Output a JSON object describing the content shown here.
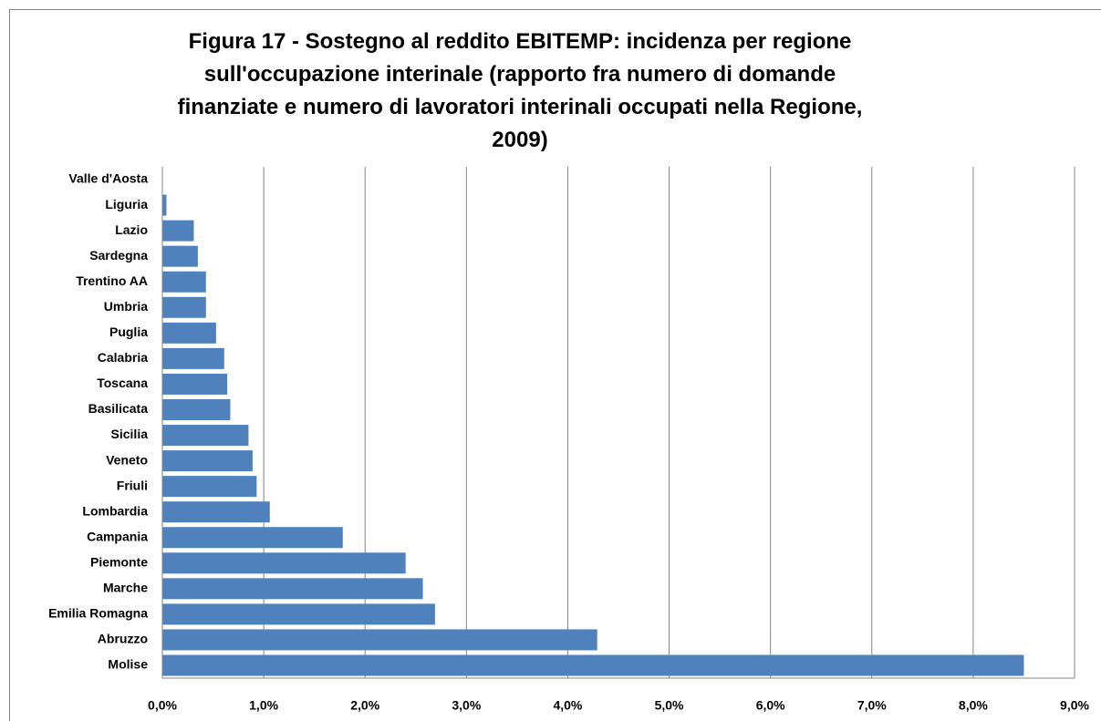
{
  "chart_data": {
    "type": "hbar",
    "title": "Figura 17 - Sostegno al reddito EBITEMP: incidenza per regione\nsull'occupazione interinale (rapporto fra numero di domande\nfinanziate e numero di lavoratori interinali occupati nella Regione,\n2009)",
    "categories": [
      "Valle d'Aosta",
      "Liguria",
      "Lazio",
      "Sardegna",
      "Trentino AA",
      "Umbria",
      "Puglia",
      "Calabria",
      "Toscana",
      "Basilicata",
      "Sicilia",
      "Veneto",
      "Friuli",
      "Lombardia",
      "Campania",
      "Piemonte",
      "Marche",
      "Emilia Romagna",
      "Abruzzo",
      "Molise"
    ],
    "values": [
      0,
      0.04,
      0.31,
      0.35,
      0.43,
      0.43,
      0.53,
      0.61,
      0.64,
      0.67,
      0.85,
      0.89,
      0.93,
      1.06,
      1.78,
      2.4,
      2.57,
      2.69,
      4.29,
      8.5
    ],
    "color": "#4f81bd",
    "xlim": [
      0,
      9
    ],
    "xticks": [
      {
        "value": 0,
        "label": "0,0%"
      },
      {
        "value": 1,
        "label": "1,0%"
      },
      {
        "value": 2,
        "label": "2,0%"
      },
      {
        "value": 3,
        "label": "3,0%"
      },
      {
        "value": 4,
        "label": "4,0%"
      },
      {
        "value": 5,
        "label": "5,0%"
      },
      {
        "value": 6,
        "label": "6,0%"
      },
      {
        "value": 7,
        "label": "7,0%"
      },
      {
        "value": 8,
        "label": "8,0%"
      },
      {
        "value": 9,
        "label": "9,0%"
      }
    ],
    "grid": true
  }
}
